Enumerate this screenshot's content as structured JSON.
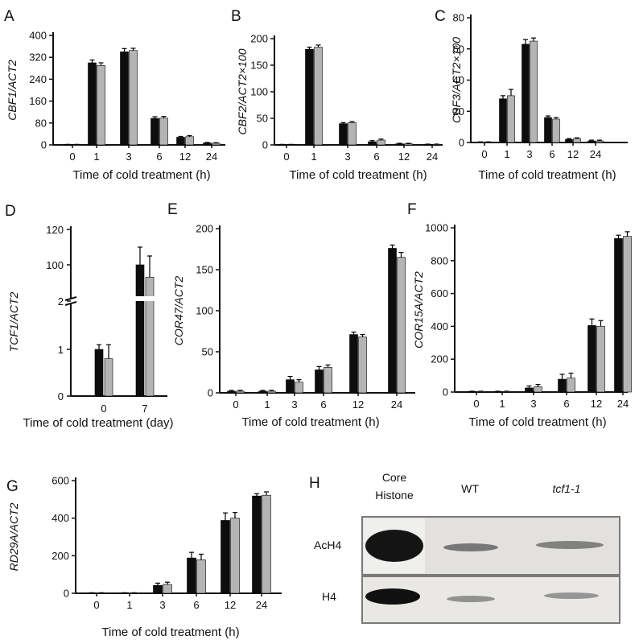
{
  "colors": {
    "wt_bar": "#0d0d0d",
    "mutant_bar": "#b4b4b4",
    "axis": "#111111"
  },
  "chart_data": [
    {
      "panel": "A",
      "type": "bar",
      "ylabel": "CBF1/ACT2",
      "xlabel": "Time of cold treatment (h)",
      "categories": [
        "0",
        "1",
        "3",
        "6",
        "12",
        "24"
      ],
      "ylim": [
        0,
        400
      ],
      "yticks": [
        "0",
        "80",
        "160",
        "240",
        "320",
        "400"
      ],
      "series": [
        {
          "values": [
            1,
            300,
            340,
            97,
            28,
            7
          ],
          "errors": [
            1,
            10,
            12,
            6,
            3,
            2
          ]
        },
        {
          "values": [
            1,
            290,
            345,
            98,
            30,
            6
          ],
          "errors": [
            1,
            10,
            8,
            6,
            4,
            2
          ]
        }
      ]
    },
    {
      "panel": "B",
      "type": "bar",
      "ylabel": "CBF2/ACT2×100",
      "xlabel": "Time of cold treatment (h)",
      "categories": [
        "0",
        "1",
        "3",
        "6",
        "12",
        "24"
      ],
      "ylim": [
        0,
        200
      ],
      "yticks": [
        "0",
        "50",
        "100",
        "150",
        "200"
      ],
      "series": [
        {
          "values": [
            0.5,
            180,
            40,
            6,
            2,
            1
          ],
          "errors": [
            0.5,
            4,
            2,
            2,
            1,
            0.5
          ]
        },
        {
          "values": [
            0.5,
            184,
            42,
            9,
            2,
            1
          ],
          "errors": [
            0.5,
            4,
            2,
            2,
            1,
            0.5
          ]
        }
      ]
    },
    {
      "panel": "C",
      "type": "bar",
      "ylabel": "CBF3/ACT2×100",
      "xlabel": "Time of cold treatment (h)",
      "categories": [
        "0",
        "1",
        "3",
        "6",
        "12",
        "24"
      ],
      "ylim": [
        0,
        80
      ],
      "yticks": [
        "0",
        "20",
        "40",
        "60",
        "80"
      ],
      "series": [
        {
          "values": [
            0.2,
            28,
            63,
            16,
            2,
            1
          ],
          "errors": [
            0.2,
            2,
            3,
            1,
            0.5,
            0.5
          ]
        },
        {
          "values": [
            0.2,
            30,
            65,
            15,
            2.5,
            1
          ],
          "errors": [
            0.2,
            4,
            2,
            1,
            0.5,
            0.5
          ]
        }
      ]
    },
    {
      "panel": "D",
      "type": "bar",
      "ylabel": "TCF1/ACT2",
      "xlabel": "Time of cold treatment (day)",
      "categories": [
        "0",
        "7"
      ],
      "broken_axis": true,
      "yticks": [
        "0",
        "1",
        "2",
        "100",
        "120"
      ],
      "series": [
        {
          "values": [
            1.0,
            100
          ],
          "errors": [
            0.1,
            10
          ]
        },
        {
          "values": [
            0.8,
            93
          ],
          "errors": [
            0.3,
            12
          ]
        }
      ]
    },
    {
      "panel": "E",
      "type": "bar",
      "ylabel": "COR47/ACT2",
      "xlabel": "Time of cold treatment (h)",
      "categories": [
        "0",
        "1",
        "3",
        "6",
        "12",
        "24"
      ],
      "ylim": [
        0,
        200
      ],
      "yticks": [
        "0",
        "50",
        "100",
        "150",
        "200"
      ],
      "series": [
        {
          "values": [
            2,
            2,
            16,
            28,
            71,
            176
          ],
          "errors": [
            1,
            1,
            4,
            4,
            3,
            4
          ]
        },
        {
          "values": [
            2,
            2,
            13,
            31,
            68,
            165
          ],
          "errors": [
            1,
            1,
            3,
            3,
            3,
            6
          ]
        }
      ]
    },
    {
      "panel": "F",
      "type": "bar",
      "ylabel": "COR15A/ACT2",
      "xlabel": "Time of cold treatment (h)",
      "categories": [
        "0",
        "1",
        "3",
        "6",
        "12",
        "24"
      ],
      "ylim": [
        0,
        1000
      ],
      "yticks": [
        "0",
        "200",
        "400",
        "600",
        "800",
        "1000"
      ],
      "series": [
        {
          "values": [
            3,
            3,
            25,
            78,
            405,
            935
          ],
          "errors": [
            2,
            2,
            12,
            30,
            40,
            20
          ]
        },
        {
          "values": [
            3,
            3,
            32,
            85,
            400,
            948
          ],
          "errors": [
            2,
            2,
            14,
            30,
            35,
            28
          ]
        }
      ]
    },
    {
      "panel": "G",
      "type": "bar",
      "ylabel": "RD29A/ACT2",
      "xlabel": "Time of cold treatment (h)",
      "categories": [
        "0",
        "1",
        "3",
        "6",
        "12",
        "24"
      ],
      "ylim": [
        0,
        600
      ],
      "yticks": [
        "0",
        "200",
        "400",
        "600"
      ],
      "series": [
        {
          "values": [
            2,
            2,
            42,
            188,
            388,
            518
          ],
          "errors": [
            1,
            1,
            12,
            30,
            40,
            12
          ]
        },
        {
          "values": [
            2,
            2,
            47,
            178,
            400,
            522
          ],
          "errors": [
            1,
            1,
            12,
            30,
            30,
            18
          ]
        }
      ]
    }
  ],
  "blot": {
    "panel": "H",
    "columns": [
      {
        "label_line1": "Core",
        "label_line2": "Histone"
      },
      {
        "label_line1": "WT"
      },
      {
        "label_line1": "tcf1-1"
      }
    ],
    "rows": [
      "AcH4",
      "H4"
    ]
  }
}
